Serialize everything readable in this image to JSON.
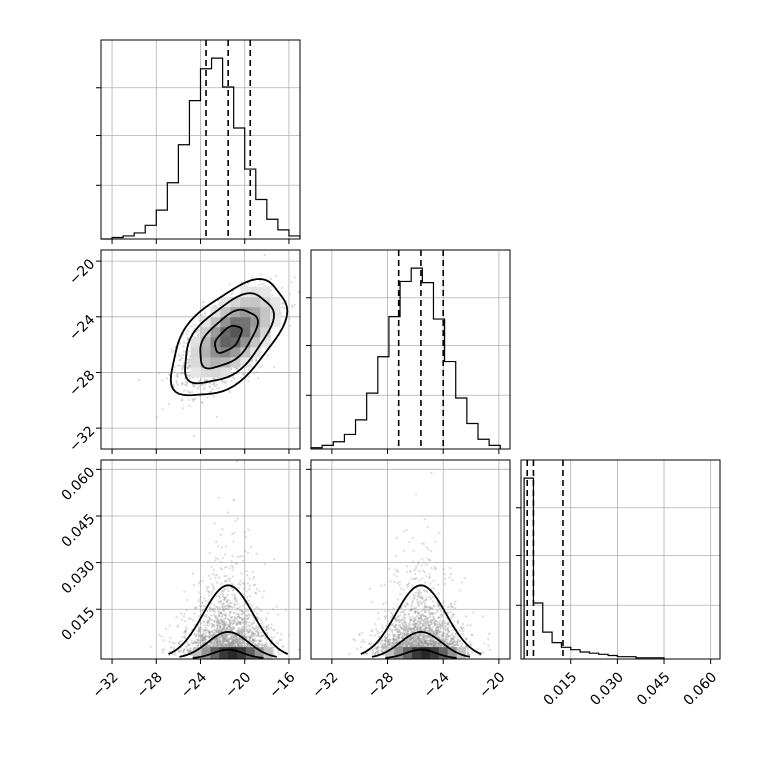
{
  "chart_data": {
    "type": "corner",
    "parameters": [
      {
        "range": [
          -33,
          -15
        ],
        "ticks": [
          -32,
          -28,
          -24,
          -20,
          -16
        ],
        "tick_labels": [
          "−32",
          "−28",
          "−24",
          "−20",
          "−16"
        ],
        "mean": -21.5,
        "sd": 2.0,
        "quantiles": [
          -23.5,
          -21.5,
          -19.5
        ]
      },
      {
        "range": [
          -33.5,
          -19.2
        ],
        "ticks": [
          -32,
          -28,
          -24,
          -20
        ],
        "tick_labels": [
          "−32",
          "−28",
          "−24",
          "−20"
        ],
        "mean": -25.6,
        "sd": 1.6,
        "quantiles": [
          -27.2,
          -25.6,
          -24.0
        ]
      },
      {
        "range": [
          -0.001,
          0.063
        ],
        "ticks": [
          0.015,
          0.03,
          0.045,
          0.06
        ],
        "tick_labels": [
          "0.015",
          "0.030",
          "0.045",
          "0.060"
        ],
        "quantiles": [
          0.001,
          0.003,
          0.0125
        ]
      }
    ],
    "histograms": [
      {
        "param": 0,
        "bin_edges": [
          -33,
          -32,
          -31,
          -30,
          -29,
          -28,
          -27,
          -26,
          -25,
          -24,
          -23,
          -22,
          -21,
          -20,
          -19,
          -18,
          -17,
          -16,
          -15
        ],
        "counts": [
          0,
          1,
          2,
          4,
          9,
          19,
          37,
          62,
          91,
          112,
          119,
          100,
          73,
          46,
          26,
          13,
          6,
          2
        ]
      },
      {
        "param": 1,
        "bin_edges": [
          -33.5,
          -32.7,
          -31.9,
          -31.1,
          -30.3,
          -29.5,
          -28.7,
          -27.9,
          -27.1,
          -26.3,
          -25.5,
          -24.7,
          -23.9,
          -23.1,
          -22.3,
          -21.5,
          -20.7,
          -19.9
        ],
        "counts": [
          1,
          3,
          6,
          12,
          24,
          46,
          76,
          109,
          138,
          149,
          137,
          107,
          72,
          42,
          21,
          8,
          3
        ]
      },
      {
        "param": 2,
        "bin_edges": [
          0,
          0.003,
          0.006,
          0.009,
          0.012,
          0.015,
          0.018,
          0.021,
          0.024,
          0.027,
          0.03,
          0.033,
          0.036,
          0.039,
          0.042,
          0.045
        ],
        "counts": [
          155,
          48,
          23,
          14,
          10,
          8,
          6,
          5,
          4,
          3,
          2,
          2,
          1,
          1,
          1
        ]
      }
    ],
    "grid": true
  }
}
